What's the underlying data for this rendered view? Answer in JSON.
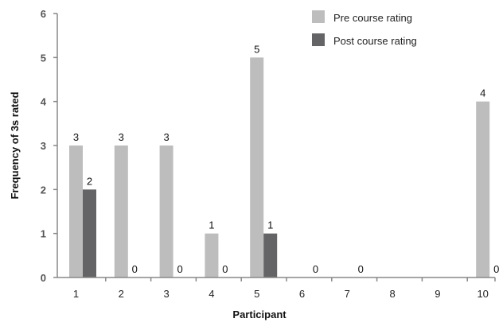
{
  "chart_data": {
    "type": "bar",
    "title": "",
    "xlabel": "Participant",
    "ylabel": "Frequency of 3s rated",
    "categories": [
      "1",
      "2",
      "3",
      "4",
      "5",
      "6",
      "7",
      "8",
      "9",
      "10"
    ],
    "ylim": [
      0,
      6
    ],
    "yticks": [
      "0",
      "1",
      "2",
      "3",
      "4",
      "5",
      "6"
    ],
    "grid": false,
    "legend_position": "top-right",
    "series": [
      {
        "name": "Pre course rating",
        "color": "#bdbdbe",
        "values": [
          3,
          3,
          3,
          1,
          5,
          0,
          0,
          0,
          0,
          4
        ],
        "labels": [
          "3",
          "3",
          "3",
          "1",
          "5",
          "",
          "",
          "",
          "",
          "4"
        ]
      },
      {
        "name": "Post course rating",
        "color": "#646466",
        "values": [
          2,
          0,
          0,
          0,
          1,
          0,
          0,
          0,
          0,
          0
        ],
        "labels": [
          "2",
          "0",
          "0",
          "0",
          "1",
          "0",
          "0",
          "",
          "",
          "0"
        ]
      }
    ]
  }
}
